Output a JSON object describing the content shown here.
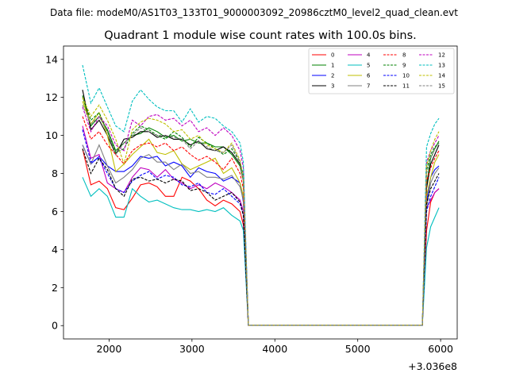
{
  "suptitle": "Data file: modeM0/AS1T03_133T01_9000003092_20986cztM0_level2_quad_clean.evt",
  "chart_data": {
    "type": "line",
    "title": "Quadrant 1 module wise count rates with 100.0s bins.",
    "xlabel": "",
    "ylabel": "",
    "x_offset_label": "+3.036e8",
    "xlim": [
      1450,
      6200
    ],
    "ylim": [
      -0.7,
      14.7
    ],
    "xticks": [
      2000,
      3000,
      4000,
      5000,
      6000
    ],
    "yticks": [
      0,
      2,
      4,
      6,
      8,
      10,
      12,
      14
    ],
    "legend_position": "top-right",
    "x": [
      1680,
      1780,
      1880,
      1980,
      2080,
      2180,
      2280,
      2380,
      2480,
      2580,
      2680,
      2780,
      2880,
      2980,
      3080,
      3180,
      3280,
      3380,
      3480,
      3580,
      3620,
      3680,
      5780,
      5830,
      5880,
      5930,
      5980
    ],
    "series": [
      {
        "name": "0",
        "color": "#ff0000",
        "dash": "solid",
        "values": [
          9.3,
          7.4,
          7.6,
          7.2,
          6.2,
          6.1,
          6.7,
          7.4,
          7.5,
          7.3,
          6.8,
          6.8,
          7.8,
          7.6,
          7.2,
          6.6,
          6.3,
          6.6,
          6.4,
          6.0,
          5.3,
          0.02,
          0.02,
          5.0,
          6.5,
          7.0,
          7.2
        ]
      },
      {
        "name": "1",
        "color": "#008000",
        "dash": "solid",
        "values": [
          12.1,
          10.5,
          11.0,
          10.3,
          9.2,
          9.6,
          10.0,
          10.1,
          10.4,
          10.2,
          9.9,
          10.0,
          9.7,
          9.8,
          9.6,
          9.6,
          9.4,
          9.4,
          9.0,
          8.4,
          7.6,
          0.02,
          0.02,
          7.4,
          8.8,
          9.3,
          9.7
        ]
      },
      {
        "name": "2",
        "color": "#0000ff",
        "dash": "solid",
        "values": [
          9.5,
          8.5,
          8.9,
          8.4,
          8.1,
          8.1,
          8.4,
          8.9,
          8.8,
          8.9,
          8.4,
          8.6,
          8.4,
          7.8,
          8.3,
          8.1,
          8.0,
          7.6,
          7.8,
          7.5,
          6.5,
          0.02,
          0.02,
          6.5,
          7.8,
          8.2,
          8.4
        ]
      },
      {
        "name": "3",
        "color": "#000000",
        "dash": "solid",
        "values": [
          12.4,
          10.3,
          10.8,
          10.0,
          9.0,
          9.8,
          9.9,
          10.2,
          10.2,
          9.9,
          10.0,
          9.8,
          9.8,
          9.5,
          9.7,
          9.3,
          9.2,
          9.4,
          9.1,
          8.5,
          7.7,
          0.02,
          0.02,
          7.2,
          8.5,
          9.0,
          9.5
        ]
      },
      {
        "name": "4",
        "color": "#bf00bf",
        "dash": "solid",
        "values": [
          10.5,
          8.8,
          9.0,
          7.5,
          7.2,
          7.0,
          7.8,
          8.3,
          8.2,
          7.8,
          8.2,
          7.7,
          7.5,
          7.2,
          7.4,
          7.2,
          7.5,
          7.3,
          7.0,
          6.6,
          6.0,
          0.02,
          0.02,
          6.2,
          6.6,
          7.0,
          7.2
        ]
      },
      {
        "name": "5",
        "color": "#00bfbf",
        "dash": "solid",
        "values": [
          7.8,
          6.8,
          7.2,
          6.8,
          5.7,
          5.7,
          7.2,
          6.8,
          6.5,
          6.6,
          6.4,
          6.2,
          6.1,
          6.1,
          6.0,
          6.1,
          6.0,
          6.2,
          5.8,
          5.5,
          5.0,
          0.02,
          0.02,
          4.1,
          5.2,
          5.7,
          6.2
        ]
      },
      {
        "name": "6",
        "color": "#bfbf00",
        "dash": "solid",
        "values": [
          11.8,
          10.6,
          11.2,
          10.0,
          8.1,
          8.5,
          9.0,
          9.4,
          9.8,
          9.1,
          9.0,
          9.2,
          8.5,
          8.2,
          8.4,
          8.6,
          8.8,
          8.0,
          8.3,
          7.5,
          6.8,
          0.02,
          0.02,
          6.8,
          7.8,
          8.6,
          9.0
        ]
      },
      {
        "name": "7",
        "color": "#808080",
        "dash": "solid",
        "values": [
          9.5,
          8.5,
          9.5,
          8.4,
          7.5,
          7.8,
          8.2,
          8.8,
          9.0,
          8.6,
          8.6,
          8.2,
          8.5,
          8.0,
          8.1,
          7.8,
          7.8,
          7.7,
          7.9,
          7.3,
          6.6,
          0.02,
          0.02,
          6.2,
          7.5,
          8.0,
          8.3
        ]
      },
      {
        "name": "8",
        "color": "#ff0000",
        "dash": "dashed",
        "values": [
          11.0,
          9.8,
          10.2,
          9.5,
          9.0,
          8.5,
          9.2,
          9.5,
          9.6,
          9.4,
          9.6,
          9.2,
          9.4,
          9.0,
          8.7,
          8.9,
          8.6,
          8.2,
          8.8,
          8.0,
          7.2,
          0.02,
          0.02,
          7.6,
          8.3,
          8.8,
          9.2
        ]
      },
      {
        "name": "9",
        "color": "#008000",
        "dash": "dashed",
        "values": [
          12.0,
          10.8,
          11.2,
          10.2,
          9.1,
          9.3,
          10.1,
          10.5,
          10.3,
          10.0,
          9.8,
          10.2,
          9.9,
          9.4,
          9.9,
          9.6,
          9.3,
          9.0,
          9.3,
          8.6,
          7.9,
          0.02,
          0.02,
          8.2,
          9.0,
          9.4,
          9.6
        ]
      },
      {
        "name": "10",
        "color": "#0000ff",
        "dash": "dashed",
        "values": [
          10.3,
          8.6,
          8.8,
          8.0,
          7.2,
          7.0,
          7.6,
          7.9,
          8.1,
          7.7,
          7.9,
          7.8,
          7.4,
          7.3,
          7.5,
          7.0,
          6.9,
          7.2,
          6.8,
          6.4,
          5.8,
          0.02,
          0.02,
          6.0,
          6.8,
          7.3,
          7.8
        ]
      },
      {
        "name": "11",
        "color": "#000000",
        "dash": "dashed",
        "values": [
          9.3,
          8.0,
          8.8,
          8.2,
          7.2,
          6.8,
          7.7,
          7.8,
          7.6,
          7.7,
          7.5,
          7.7,
          7.6,
          7.1,
          7.2,
          7.0,
          6.6,
          6.8,
          7.0,
          6.5,
          5.8,
          0.02,
          0.02,
          6.4,
          7.2,
          7.6,
          8.0
        ]
      },
      {
        "name": "12",
        "color": "#bf00bf",
        "dash": "dashed",
        "values": [
          11.5,
          10.2,
          11.0,
          10.5,
          9.5,
          9.2,
          10.8,
          10.5,
          11.0,
          11.1,
          10.8,
          10.9,
          10.5,
          10.8,
          10.2,
          10.4,
          10.0,
          10.4,
          10.0,
          9.2,
          8.3,
          0.02,
          0.02,
          8.6,
          9.2,
          9.6,
          10.0
        ]
      },
      {
        "name": "13",
        "color": "#00bfbf",
        "dash": "dashed",
        "values": [
          13.7,
          11.7,
          12.5,
          11.5,
          10.5,
          10.2,
          11.8,
          12.4,
          11.9,
          11.5,
          11.3,
          11.3,
          10.7,
          11.4,
          10.7,
          11.0,
          10.9,
          10.5,
          10.2,
          9.6,
          8.6,
          0.02,
          0.02,
          9.4,
          10.1,
          10.6,
          10.9
        ]
      },
      {
        "name": "14",
        "color": "#bfbf00",
        "dash": "dashed",
        "values": [
          12.0,
          11.0,
          11.6,
          10.8,
          9.8,
          8.5,
          10.3,
          10.7,
          10.9,
          10.8,
          10.6,
          10.2,
          10.3,
          9.8,
          10.0,
          9.5,
          9.3,
          9.1,
          9.6,
          8.7,
          7.7,
          0.02,
          0.02,
          8.4,
          9.2,
          9.8,
          10.2
        ]
      },
      {
        "name": "15",
        "color": "#808080",
        "dash": "dashed",
        "values": [
          11.6,
          10.6,
          11.0,
          10.2,
          9.0,
          9.6,
          10.0,
          10.4,
          10.2,
          10.0,
          10.0,
          9.9,
          9.8,
          9.3,
          9.7,
          9.4,
          9.2,
          9.1,
          9.5,
          8.6,
          7.6,
          0.02,
          0.02,
          8.0,
          8.8,
          9.3,
          9.6
        ]
      }
    ]
  }
}
